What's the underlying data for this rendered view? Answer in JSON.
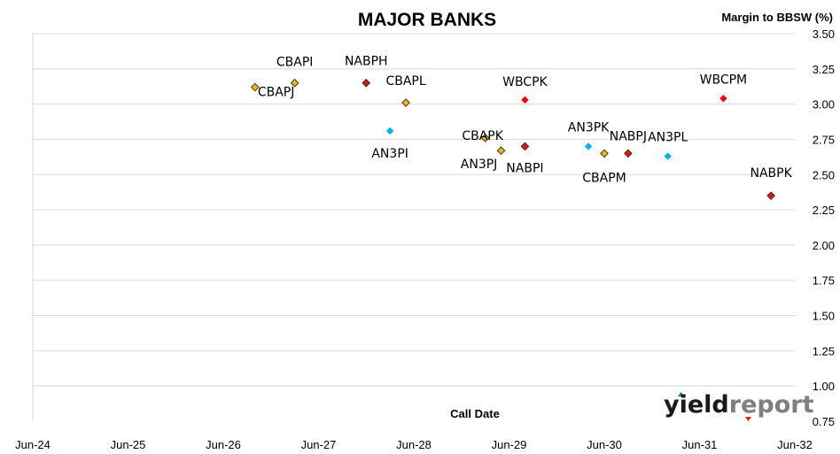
{
  "chart_data": {
    "type": "scatter",
    "title": "MAJOR BANKS",
    "ylabel": "Margin to BBSW (%)",
    "xlabel": "Call Date",
    "x_ticks": [
      "Jun-24",
      "Jun-25",
      "Jun-26",
      "Jun-27",
      "Jun-28",
      "Jun-29",
      "Jun-30",
      "Jun-31",
      "Jun-32"
    ],
    "xlim": [
      "2024-06",
      "2032-06"
    ],
    "ylim": [
      0.75,
      3.5
    ],
    "y_ticks": [
      "0.75",
      "1.00",
      "1.25",
      "1.50",
      "1.75",
      "2.00",
      "2.25",
      "2.50",
      "2.75",
      "3.00",
      "3.25",
      "3.50"
    ],
    "grid": "horizontal",
    "colors": {
      "CBA": "#f0b323",
      "NAB": "#d7191c",
      "ANZ": "#00b0f0",
      "WBC": "#ff0000"
    },
    "points": [
      {
        "label": "CBAPJ",
        "bank": "CBA",
        "x": "2026-10",
        "y": 3.12
      },
      {
        "label": "CBAPI",
        "bank": "CBA",
        "x": "2027-03",
        "y": 3.15
      },
      {
        "label": "NABPH",
        "bank": "NAB",
        "x": "2027-12",
        "y": 3.15
      },
      {
        "label": "AN3PI",
        "bank": "ANZ",
        "x": "2028-03",
        "y": 2.81
      },
      {
        "label": "CBAPL",
        "bank": "CBA",
        "x": "2028-05",
        "y": 3.01
      },
      {
        "label": "CBAPK",
        "bank": "CBA",
        "x": "2029-03",
        "y": 2.76
      },
      {
        "label": "AN3PJ",
        "bank": "CBA",
        "x": "2029-05",
        "y": 2.67
      },
      {
        "label": "WBCPK",
        "bank": "WBC",
        "x": "2029-08",
        "y": 3.03
      },
      {
        "label": "NABPI",
        "bank": "NAB",
        "x": "2029-08",
        "y": 2.7
      },
      {
        "label": "AN3PK",
        "bank": "ANZ",
        "x": "2030-04",
        "y": 2.7
      },
      {
        "label": "CBAPM",
        "bank": "CBA",
        "x": "2030-06",
        "y": 2.65
      },
      {
        "label": "NABPJ",
        "bank": "NAB",
        "x": "2030-09",
        "y": 2.65
      },
      {
        "label": "AN3PL",
        "bank": "ANZ",
        "x": "2031-02",
        "y": 2.63
      },
      {
        "label": "WBCPM",
        "bank": "WBC",
        "x": "2031-09",
        "y": 3.04
      },
      {
        "label": "NABPK",
        "bank": "NAB",
        "x": "2032-03",
        "y": 2.35
      }
    ]
  },
  "logo": {
    "part1": "yield",
    "part2": "report",
    "up_color": "#1a7a3a",
    "down_color": "#e2231a"
  }
}
